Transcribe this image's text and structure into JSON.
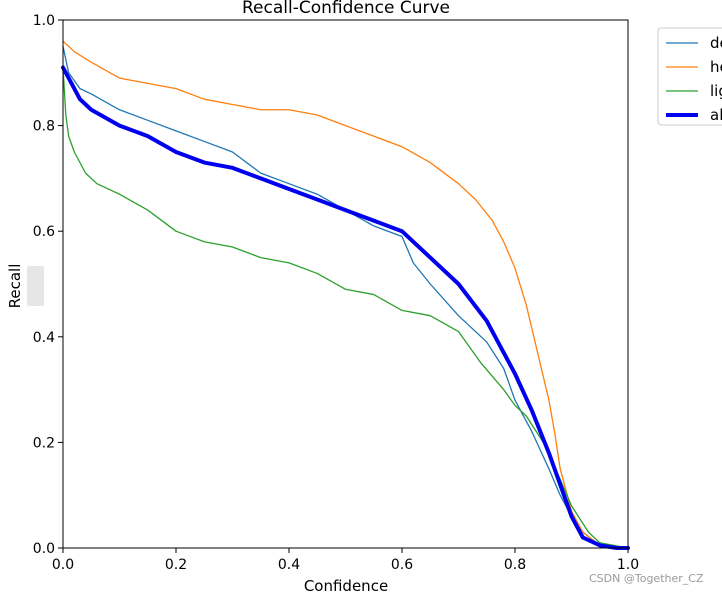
{
  "chart_data": {
    "type": "line",
    "title": "Recall-Confidence Curve",
    "xlabel": "Confidence",
    "ylabel": "Recall",
    "xlim": [
      0,
      1
    ],
    "ylim": [
      0,
      1
    ],
    "x_ticks": [
      "0.0",
      "0.2",
      "0.4",
      "0.6",
      "0.8",
      "1.0"
    ],
    "y_ticks": [
      "0.0",
      "0.2",
      "0.4",
      "0.6",
      "0.8",
      "1.0"
    ],
    "grid": false,
    "legend_position": "outside-top-right",
    "series": [
      {
        "name": "de",
        "color": "#1f77b4",
        "width": "thin",
        "x": [
          0.0,
          0.01,
          0.03,
          0.05,
          0.1,
          0.15,
          0.2,
          0.25,
          0.3,
          0.35,
          0.4,
          0.45,
          0.5,
          0.55,
          0.6,
          0.62,
          0.65,
          0.7,
          0.75,
          0.78,
          0.8,
          0.83,
          0.86,
          0.88,
          0.9,
          0.92,
          0.95,
          1.0
        ],
        "y": [
          0.95,
          0.9,
          0.87,
          0.86,
          0.83,
          0.81,
          0.79,
          0.77,
          0.75,
          0.71,
          0.69,
          0.67,
          0.64,
          0.61,
          0.59,
          0.54,
          0.5,
          0.44,
          0.39,
          0.34,
          0.28,
          0.22,
          0.15,
          0.1,
          0.06,
          0.03,
          0.005,
          0.0
        ]
      },
      {
        "name": "he",
        "color": "#ff7f0e",
        "width": "thin",
        "x": [
          0.0,
          0.02,
          0.05,
          0.1,
          0.15,
          0.2,
          0.25,
          0.3,
          0.35,
          0.4,
          0.45,
          0.5,
          0.55,
          0.6,
          0.65,
          0.7,
          0.73,
          0.76,
          0.78,
          0.8,
          0.82,
          0.84,
          0.86,
          0.87,
          0.88,
          0.9,
          0.92,
          0.95,
          1.0
        ],
        "y": [
          0.96,
          0.94,
          0.92,
          0.89,
          0.88,
          0.87,
          0.85,
          0.84,
          0.83,
          0.83,
          0.82,
          0.8,
          0.78,
          0.76,
          0.73,
          0.69,
          0.66,
          0.62,
          0.58,
          0.53,
          0.46,
          0.37,
          0.28,
          0.22,
          0.15,
          0.07,
          0.03,
          0.005,
          0.0
        ]
      },
      {
        "name": "lig",
        "color": "#2ca02c",
        "width": "thin",
        "x": [
          0.0,
          0.005,
          0.01,
          0.02,
          0.04,
          0.06,
          0.08,
          0.1,
          0.15,
          0.2,
          0.25,
          0.3,
          0.35,
          0.4,
          0.45,
          0.5,
          0.55,
          0.6,
          0.65,
          0.7,
          0.74,
          0.78,
          0.8,
          0.82,
          0.85,
          0.88,
          0.9,
          0.93,
          0.95,
          1.0
        ],
        "y": [
          0.91,
          0.82,
          0.78,
          0.75,
          0.71,
          0.69,
          0.68,
          0.67,
          0.64,
          0.6,
          0.58,
          0.57,
          0.55,
          0.54,
          0.52,
          0.49,
          0.48,
          0.45,
          0.44,
          0.41,
          0.35,
          0.3,
          0.27,
          0.25,
          0.2,
          0.13,
          0.08,
          0.03,
          0.01,
          0.0
        ]
      },
      {
        "name": "al",
        "color": "#0000ee",
        "width": "thick",
        "x": [
          0.0,
          0.01,
          0.03,
          0.05,
          0.1,
          0.15,
          0.2,
          0.25,
          0.3,
          0.35,
          0.4,
          0.45,
          0.5,
          0.55,
          0.6,
          0.65,
          0.7,
          0.75,
          0.78,
          0.8,
          0.83,
          0.86,
          0.88,
          0.9,
          0.92,
          0.95,
          0.98,
          1.0
        ],
        "y": [
          0.91,
          0.89,
          0.85,
          0.83,
          0.8,
          0.78,
          0.75,
          0.73,
          0.72,
          0.7,
          0.68,
          0.66,
          0.64,
          0.62,
          0.6,
          0.55,
          0.5,
          0.43,
          0.37,
          0.33,
          0.26,
          0.18,
          0.12,
          0.06,
          0.02,
          0.005,
          0.0,
          0.0
        ]
      }
    ]
  },
  "watermark": "CSDN @Together_CZ"
}
